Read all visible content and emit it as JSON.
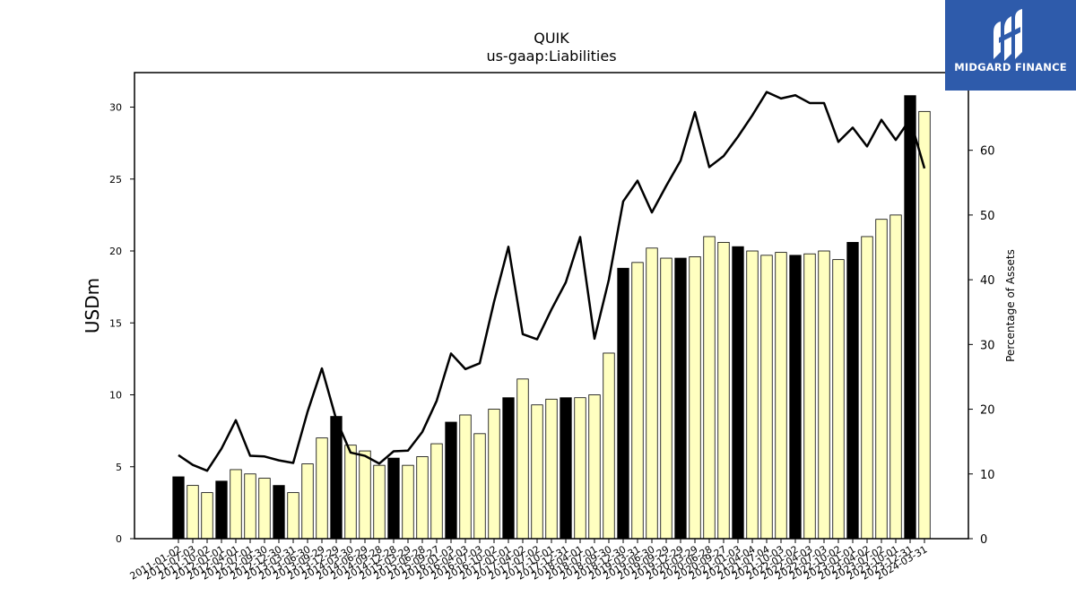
{
  "chart_data": {
    "type": "bar+line",
    "title": "QUIK",
    "subtitle": "us-gaap:Liabilities",
    "ylabel": "USDm",
    "y2label": "Percentage of Assets",
    "ylim": [
      0,
      32.4
    ],
    "y2lim": [
      0,
      72
    ],
    "yticks": [
      0,
      5,
      10,
      15,
      20,
      25,
      30
    ],
    "y2ticks": [
      0,
      10,
      20,
      30,
      40,
      50,
      60
    ],
    "categories": [
      "2011-01-02",
      "2011-07-03",
      "2011-10-02",
      "2012-01-01",
      "2012-04-01",
      "2012-07-01",
      "2012-09-30",
      "2012-12-30",
      "2013-03-31",
      "2013-06-30",
      "2013-09-29",
      "2013-12-29",
      "2014-03-30",
      "2014-06-29",
      "2014-09-28",
      "2014-12-28",
      "2015-03-29",
      "2015-06-28",
      "2015-09-27",
      "2016-01-03",
      "2016-04-03",
      "2016-07-03",
      "2016-10-02",
      "2017-01-01",
      "2017-04-02",
      "2017-07-02",
      "2017-10-01",
      "2017-12-31",
      "2018-04-01",
      "2018-07-01",
      "2018-09-30",
      "2018-12-30",
      "2019-03-31",
      "2019-06-30",
      "2019-09-29",
      "2019-12-29",
      "2020-03-29",
      "2020-06-28",
      "2020-09-27",
      "2021-01-03",
      "2021-04-04",
      "2021-07-04",
      "2021-10-03",
      "2022-01-02",
      "2022-04-03",
      "2022-07-03",
      "2022-10-02",
      "2023-01-01",
      "2023-04-02",
      "2023-07-02",
      "2023-10-01",
      "2023-12-31",
      "2024-03-31"
    ],
    "series": [
      {
        "name": "Liabilities",
        "type": "bar",
        "values": [
          4.3,
          3.7,
          3.2,
          4.0,
          4.8,
          4.5,
          4.2,
          3.7,
          3.2,
          5.2,
          7.0,
          8.5,
          6.5,
          6.1,
          5.1,
          5.6,
          5.1,
          5.7,
          6.6,
          8.1,
          8.6,
          7.3,
          9.0,
          9.8,
          11.1,
          9.3,
          9.7,
          9.8,
          9.8,
          10.0,
          12.9,
          18.8,
          19.2,
          20.2,
          19.5,
          19.5,
          19.6,
          21.0,
          20.6,
          20.3,
          20.0,
          19.7,
          19.9,
          19.7,
          19.8,
          20.0,
          19.4,
          20.6,
          21.0,
          22.2,
          22.5,
          30.8,
          29.7
        ],
        "highlight": [
          true,
          false,
          false,
          true,
          false,
          false,
          false,
          true,
          false,
          false,
          false,
          true,
          false,
          false,
          false,
          true,
          false,
          false,
          false,
          true,
          false,
          false,
          false,
          true,
          false,
          false,
          false,
          true,
          false,
          false,
          false,
          true,
          false,
          false,
          false,
          true,
          false,
          false,
          false,
          true,
          false,
          false,
          false,
          true,
          false,
          false,
          false,
          true,
          false,
          false,
          false,
          true,
          false
        ]
      },
      {
        "name": "Percentage of Assets",
        "type": "line",
        "values": [
          12.9,
          11.4,
          10.5,
          13.9,
          18.3,
          12.8,
          12.7,
          12.1,
          11.7,
          19.6,
          26.3,
          18.4,
          13.3,
          12.8,
          11.6,
          13.5,
          13.6,
          16.5,
          21.3,
          28.6,
          26.2,
          27.1,
          36.6,
          45.1,
          31.6,
          30.8,
          35.4,
          39.6,
          46.6,
          30.9,
          40.0,
          52.1,
          55.3,
          50.4,
          54.5,
          58.4,
          65.9,
          57.4,
          59.1,
          62.1,
          65.4,
          69.0,
          68.0,
          68.5,
          67.3,
          67.3,
          61.3,
          63.5,
          60.6,
          64.7,
          61.6,
          64.8,
          57.2
        ]
      }
    ],
    "colors": {
      "bar_fill": "#ffffc0",
      "bar_highlight": "#000000",
      "bar_edge": "#000000",
      "line": "#000000"
    },
    "grid": false,
    "legend": "none"
  },
  "logo": {
    "text": "MIDGARD FINANCE",
    "background": "#2e5bab"
  }
}
